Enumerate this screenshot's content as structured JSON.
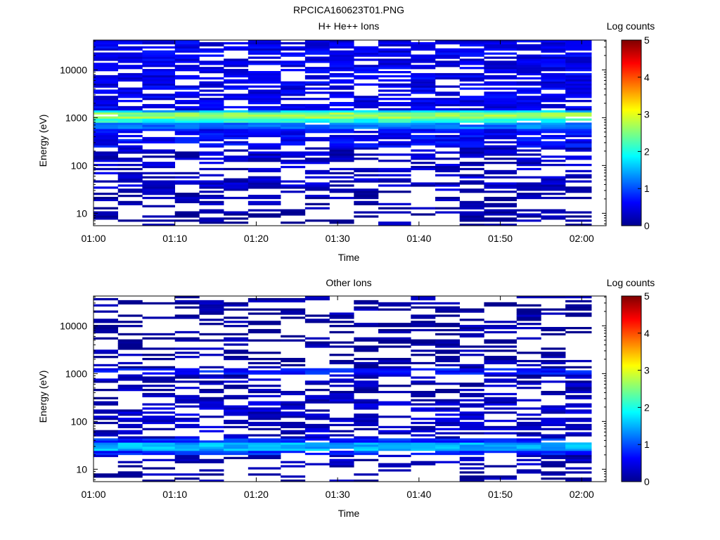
{
  "figure_title": "RPCICA160623T01.PNG",
  "colormap": [
    "#00008f",
    "#0000ff",
    "#007fff",
    "#00ffff",
    "#7fff7f",
    "#ffff00",
    "#ff7f00",
    "#ff0000",
    "#7f0000"
  ],
  "chart_data": [
    {
      "type": "heatmap",
      "title": "H+ He++ Ions",
      "xlabel": "Time",
      "ylabel": "Energy (eV)",
      "y_scale": "log",
      "ylim": [
        5.5,
        42000
      ],
      "x_range": [
        "01:00",
        "02:03"
      ],
      "x_ticks": [
        "01:00",
        "01:10",
        "01:20",
        "01:30",
        "01:40",
        "01:50",
        "02:00"
      ],
      "y_ticks": [
        "10",
        "100",
        "1000",
        "10000"
      ],
      "time_bins": [
        "01:00",
        "01:03",
        "01:06",
        "01:10",
        "01:13",
        "01:16",
        "01:19",
        "01:23",
        "01:26",
        "01:29",
        "01:32",
        "01:35",
        "01:39",
        "01:42",
        "01:45",
        "01:48",
        "01:52",
        "01:55",
        "01:58"
      ],
      "colorbar": {
        "label": "Log counts",
        "range": [
          0,
          5
        ],
        "ticks": [
          "0",
          "1",
          "2",
          "3",
          "4",
          "5"
        ]
      },
      "bands": [
        {
          "energy_range": [
            1000,
            1300
          ],
          "log_counts": 2.6
        },
        {
          "energy_range": [
            800,
            1000
          ],
          "log_counts": 2.0
        },
        {
          "energy_range": [
            1300,
            1500
          ],
          "log_counts": 1.6
        },
        {
          "energy_range": [
            600,
            800
          ],
          "log_counts": 1.2
        },
        {
          "energy_range": [
            250,
            600
          ],
          "log_counts": 0.6
        },
        {
          "energy_range": [
            1500,
            42000
          ],
          "log_counts": 0.5
        },
        {
          "energy_range": [
            30,
            250
          ],
          "log_counts": 0.3
        },
        {
          "energy_range": [
            12,
            30
          ],
          "log_counts": 0.15
        },
        {
          "energy_range": [
            5.5,
            12
          ],
          "log_counts": 0.1
        }
      ]
    },
    {
      "type": "heatmap",
      "title": "Other Ions",
      "xlabel": "Time",
      "ylabel": "Energy (eV)",
      "y_scale": "log",
      "ylim": [
        5.5,
        42000
      ],
      "x_range": [
        "01:00",
        "02:03"
      ],
      "x_ticks": [
        "01:00",
        "01:10",
        "01:20",
        "01:30",
        "01:40",
        "01:50",
        "02:00"
      ],
      "y_ticks": [
        "10",
        "100",
        "1000",
        "10000"
      ],
      "time_bins": [
        "01:00",
        "01:03",
        "01:06",
        "01:10",
        "01:13",
        "01:16",
        "01:19",
        "01:23",
        "01:26",
        "01:29",
        "01:32",
        "01:35",
        "01:39",
        "01:42",
        "01:45",
        "01:48",
        "01:52",
        "01:55",
        "01:58"
      ],
      "colorbar": {
        "label": "Log counts",
        "range": [
          0,
          5
        ],
        "ticks": [
          "0",
          "1",
          "2",
          "3",
          "4",
          "5"
        ]
      },
      "bands": [
        {
          "energy_range": [
            24,
            36
          ],
          "log_counts": 1.5
        },
        {
          "energy_range": [
            20,
            24
          ],
          "log_counts": 0.8
        },
        {
          "energy_range": [
            36,
            45
          ],
          "log_counts": 0.8
        },
        {
          "energy_range": [
            1000,
            1350
          ],
          "log_counts": 0.7
        },
        {
          "energy_range": [
            45,
            300
          ],
          "log_counts": 0.3
        },
        {
          "energy_range": [
            12,
            20
          ],
          "log_counts": 0.2
        },
        {
          "energy_range": [
            5.5,
            12
          ],
          "log_counts": 0.1
        },
        {
          "energy_range": [
            300,
            1000
          ],
          "log_counts": 0.2
        },
        {
          "energy_range": [
            1350,
            42000
          ],
          "log_counts": 0.1
        }
      ]
    }
  ]
}
